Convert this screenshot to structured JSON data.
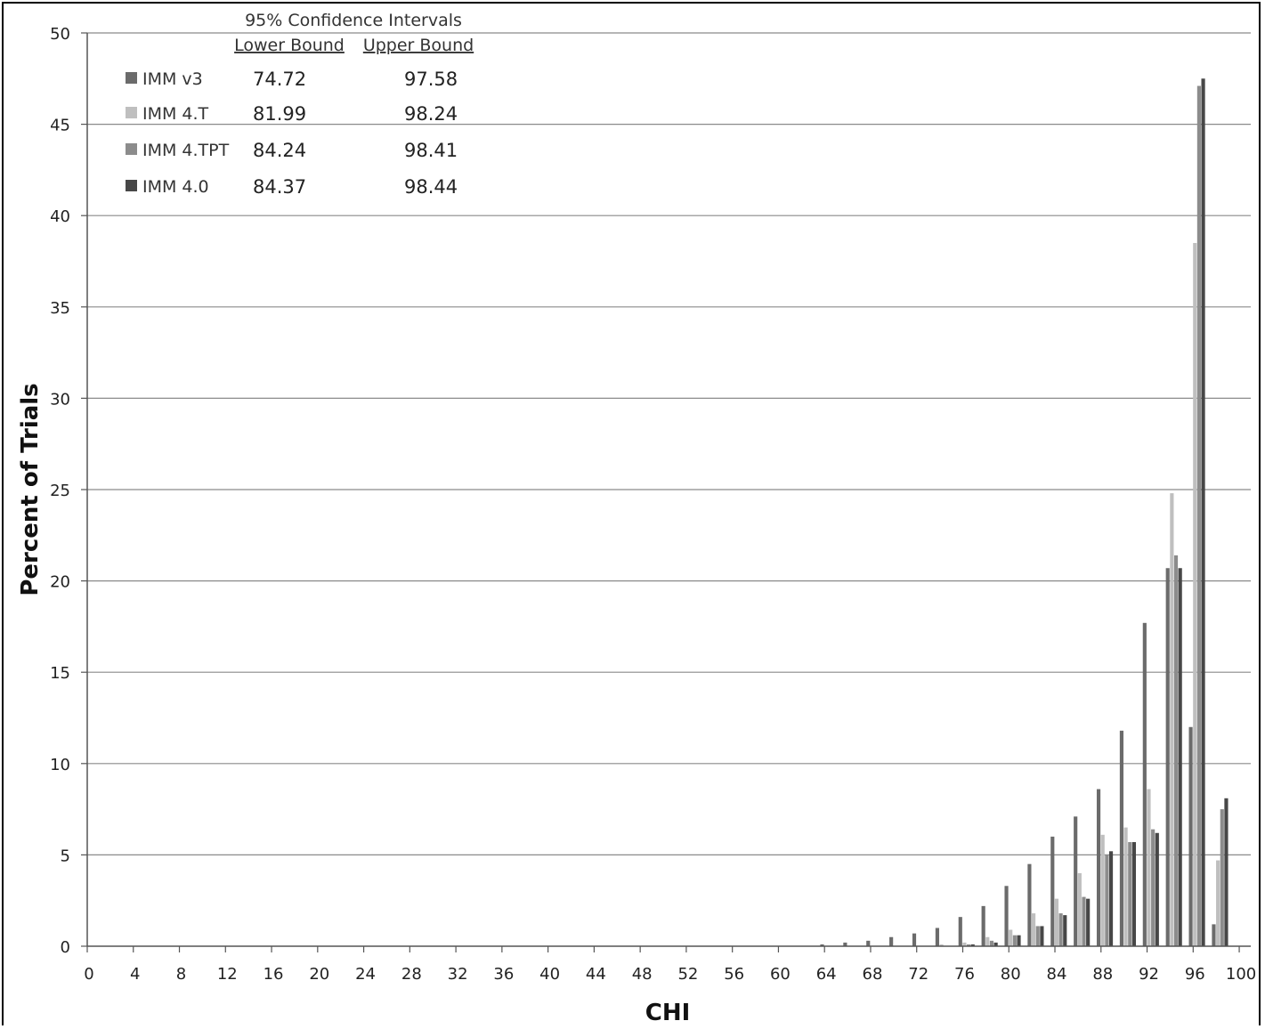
{
  "chart_data": {
    "type": "bar",
    "xlabel": "CHI",
    "ylabel": "Percent of Trials",
    "ylim": [
      0,
      50
    ],
    "yticks": [
      0,
      5,
      10,
      15,
      20,
      25,
      30,
      35,
      40,
      45,
      50
    ],
    "xticks": [
      0,
      4,
      8,
      12,
      16,
      20,
      24,
      28,
      32,
      36,
      40,
      44,
      48,
      52,
      56,
      60,
      64,
      68,
      72,
      76,
      80,
      84,
      88,
      92,
      96,
      100
    ],
    "grid": true,
    "legend_placement": "top-left",
    "categories": [
      64,
      66,
      68,
      70,
      72,
      74,
      76,
      78,
      80,
      82,
      84,
      86,
      88,
      90,
      92,
      94,
      96,
      98
    ],
    "series": [
      {
        "name": "IMM v3",
        "color": "#6b6b6b",
        "values": [
          0.1,
          0.2,
          0.3,
          0.5,
          0.7,
          1.0,
          1.6,
          2.2,
          3.3,
          4.5,
          6.0,
          7.1,
          8.6,
          11.8,
          17.7,
          20.7,
          12.0,
          1.2
        ]
      },
      {
        "name": "IMM 4.T",
        "color": "#bfbfbf",
        "values": [
          0.0,
          0.0,
          0.0,
          0.0,
          0.0,
          0.1,
          0.2,
          0.5,
          0.9,
          1.8,
          2.6,
          4.0,
          6.1,
          6.5,
          8.6,
          24.8,
          38.5,
          4.7
        ]
      },
      {
        "name": "IMM 4.TPT",
        "color": "#8c8c8c",
        "values": [
          0.0,
          0.0,
          0.0,
          0.0,
          0.0,
          0.0,
          0.1,
          0.3,
          0.6,
          1.1,
          1.8,
          2.7,
          5.0,
          5.7,
          6.4,
          21.4,
          47.1,
          7.5
        ]
      },
      {
        "name": "IMM 4.0",
        "color": "#474747",
        "values": [
          0.0,
          0.0,
          0.0,
          0.0,
          0.0,
          0.0,
          0.1,
          0.2,
          0.6,
          1.1,
          1.7,
          2.6,
          5.2,
          5.7,
          6.2,
          20.7,
          47.5,
          8.1
        ]
      }
    ],
    "annotation": {
      "title": "95% Confidence Intervals",
      "lower_header": "Lower Bound",
      "upper_header": "Upper Bound",
      "rows": [
        {
          "name": "IMM v3",
          "lower": "74.72",
          "upper": "97.58"
        },
        {
          "name": "IMM 4.T",
          "lower": "81.99",
          "upper": "98.24"
        },
        {
          "name": "IMM 4.TPT",
          "lower": "84.24",
          "upper": "98.41"
        },
        {
          "name": "IMM 4.0",
          "lower": "84.37",
          "upper": "98.44"
        }
      ]
    }
  }
}
